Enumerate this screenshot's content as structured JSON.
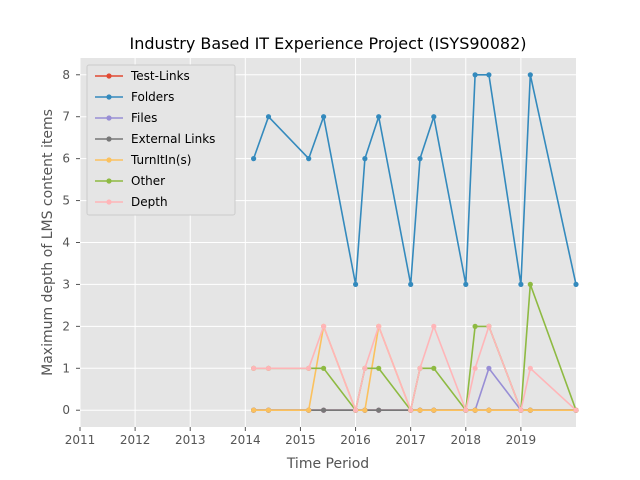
{
  "chart_data": {
    "type": "line",
    "title": "Industry Based IT Experience Project (ISYS90082)",
    "xlabel": "Time Period",
    "ylabel": "Maximum depth of LMS content items",
    "xlim": [
      2011,
      2020
    ],
    "ylim": [
      -0.4,
      8.4
    ],
    "x_ticks": [
      2011,
      2012,
      2013,
      2014,
      2015,
      2016,
      2017,
      2018,
      2019
    ],
    "y_ticks": [
      0,
      1,
      2,
      3,
      4,
      5,
      6,
      7,
      8
    ],
    "grid": true,
    "legend_position": "top-left",
    "x": [
      2014.15,
      2014.42,
      2015.15,
      2015.42,
      2016.0,
      2016.17,
      2016.42,
      2017.0,
      2017.17,
      2017.42,
      2018.0,
      2018.17,
      2018.42,
      2019.0,
      2019.17,
      2020.0
    ],
    "series": [
      {
        "name": "Test-Links",
        "color": "#E24A33",
        "values": [
          0,
          0,
          0,
          0,
          0,
          0,
          0,
          0,
          0,
          0,
          0,
          0,
          0,
          0,
          0,
          0
        ]
      },
      {
        "name": "Folders",
        "color": "#348ABD",
        "values": [
          6,
          7,
          6,
          7,
          3,
          6,
          7,
          3,
          6,
          7,
          3,
          8,
          8,
          3,
          8,
          3
        ]
      },
      {
        "name": "Files",
        "color": "#988ED5",
        "values": [
          0,
          0,
          0,
          0,
          0,
          0,
          0,
          0,
          0,
          0,
          0,
          0,
          1,
          0,
          0,
          0
        ]
      },
      {
        "name": "External Links",
        "color": "#777777",
        "values": [
          0,
          0,
          0,
          0,
          0,
          0,
          0,
          0,
          0,
          0,
          0,
          0,
          0,
          0,
          0,
          0
        ]
      },
      {
        "name": "TurnItIn(s)",
        "color": "#FBC15E",
        "values": [
          0,
          0,
          0,
          2,
          0,
          0,
          2,
          0,
          0,
          0,
          0,
          0,
          0,
          0,
          0,
          0
        ]
      },
      {
        "name": "Other",
        "color": "#8EBA42",
        "values": [
          1,
          1,
          1,
          1,
          0,
          1,
          1,
          0,
          1,
          1,
          0,
          2,
          2,
          0,
          3,
          0
        ]
      },
      {
        "name": "Depth",
        "color": "#FFB5B8",
        "values": [
          1,
          1,
          1,
          2,
          0,
          1,
          2,
          0,
          1,
          2,
          0,
          1,
          2,
          0,
          1,
          0
        ]
      }
    ]
  }
}
